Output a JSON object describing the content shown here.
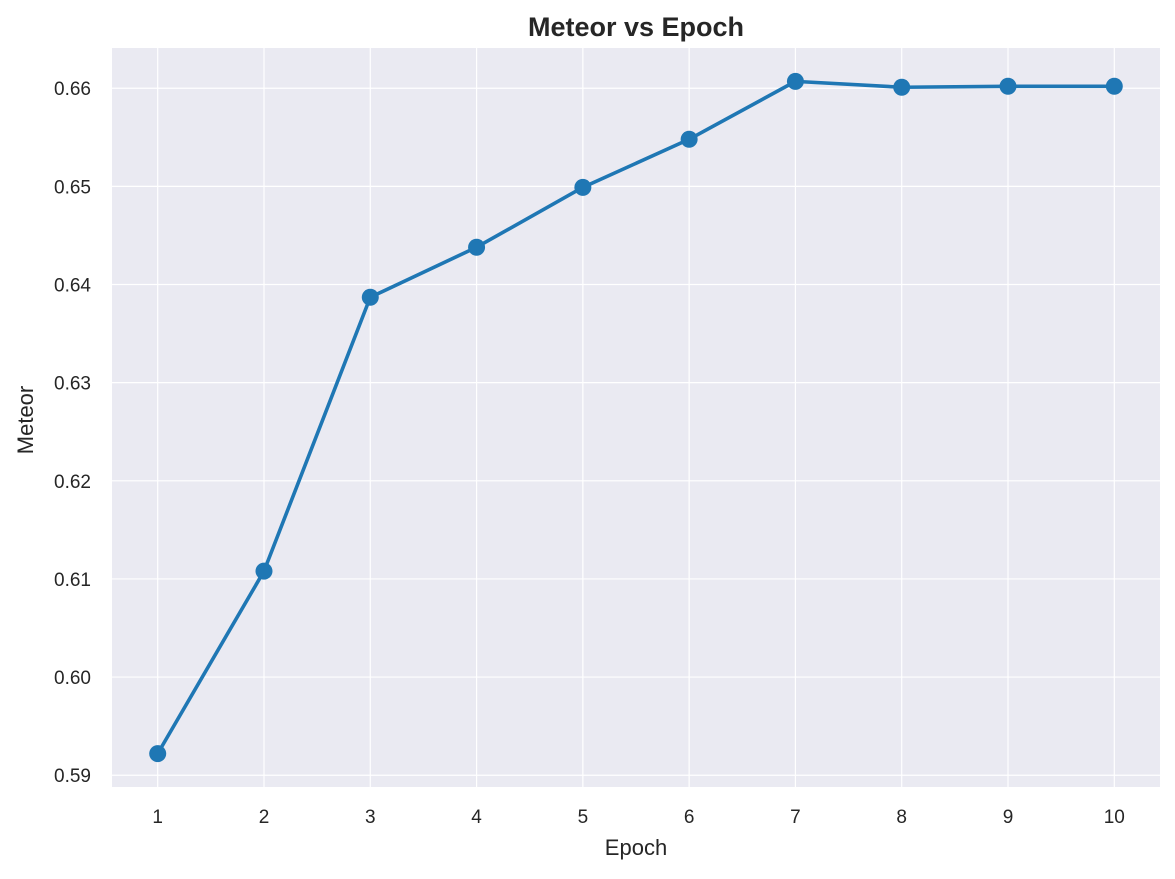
{
  "chart_data": {
    "type": "line",
    "title": "Meteor vs Epoch",
    "xlabel": "Epoch",
    "ylabel": "Meteor",
    "x": [
      1,
      2,
      3,
      4,
      5,
      6,
      7,
      8,
      9,
      10
    ],
    "series": [
      {
        "values": [
          0.5922,
          0.6108,
          0.6387,
          0.6438,
          0.6499,
          0.6548,
          0.6607,
          0.6601,
          0.6602,
          0.6602
        ],
        "color": "#1f77b4",
        "marker": "circle"
      }
    ],
    "x_ticks": [
      "1",
      "2",
      "3",
      "4",
      "5",
      "6",
      "7",
      "8",
      "9",
      "10"
    ],
    "y_ticks": [
      "0.59",
      "0.60",
      "0.61",
      "0.62",
      "0.63",
      "0.64",
      "0.65",
      "0.66"
    ],
    "y_tick_values": [
      0.59,
      0.6,
      0.61,
      0.62,
      0.63,
      0.64,
      0.65,
      0.66
    ],
    "xlim": [
      0.57,
      10.43
    ],
    "ylim": [
      0.5888,
      0.6641
    ],
    "grid": true,
    "background_color": "#eaeaf2",
    "grid_color": "#ffffff"
  }
}
